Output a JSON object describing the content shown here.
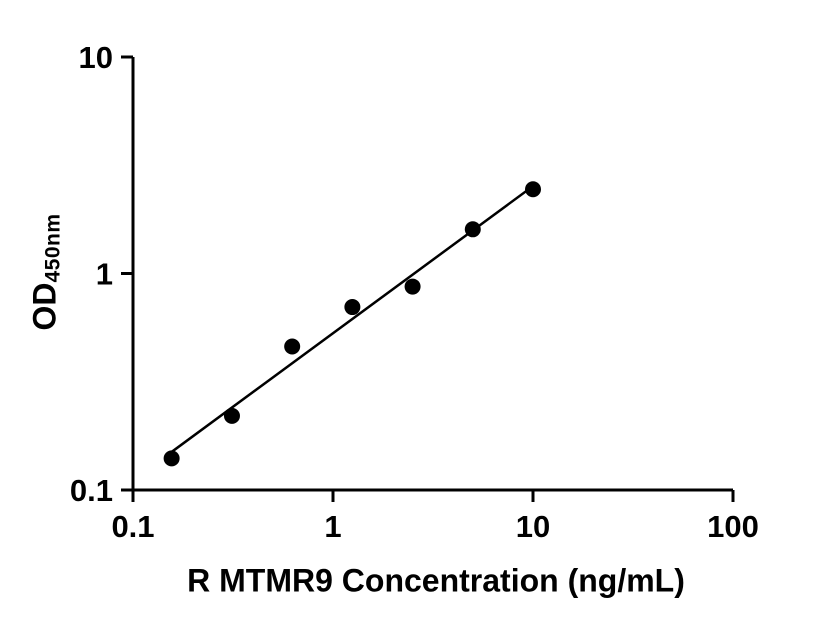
{
  "chart_data": {
    "type": "scatter",
    "title": "",
    "xlabel": "R MTMR9 Concentration (ng/mL)",
    "ylabel_main": "OD",
    "ylabel_sub": "450nm",
    "xscale": "log",
    "yscale": "log",
    "xlim": [
      0.1,
      100
    ],
    "ylim": [
      0.1,
      10
    ],
    "x": [
      0.156,
      0.3125,
      0.625,
      1.25,
      2.5,
      5,
      10
    ],
    "y": [
      0.14,
      0.22,
      0.46,
      0.7,
      0.87,
      1.6,
      2.45
    ],
    "x_ticks": [
      {
        "value": 0.1,
        "label": "0.1"
      },
      {
        "value": 1,
        "label": "1"
      },
      {
        "value": 10,
        "label": "10"
      },
      {
        "value": 100,
        "label": "100"
      }
    ],
    "y_ticks": [
      {
        "value": 0.1,
        "label": "0.1"
      },
      {
        "value": 1,
        "label": "1"
      },
      {
        "value": 10,
        "label": "10"
      }
    ],
    "trendline": "linear-fit-loglog",
    "grid": false,
    "legend": null,
    "marker_color": "#000000",
    "line_color": "#000000",
    "axis_color": "#000000",
    "background": "#ffffff"
  }
}
